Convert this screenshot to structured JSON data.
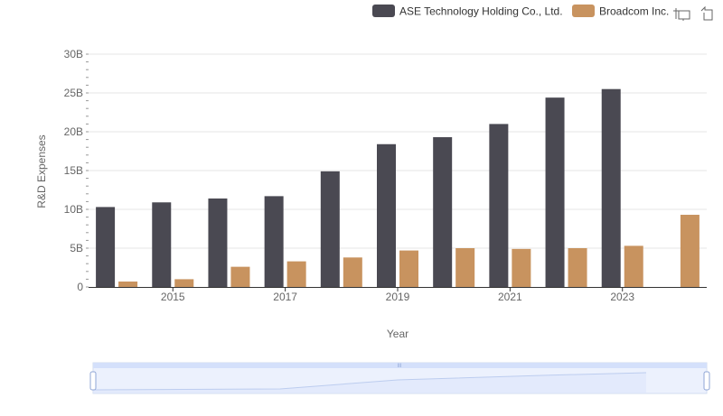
{
  "chart_data": {
    "type": "bar",
    "title": "",
    "xlabel": "Year",
    "ylabel": "R&D Expenses",
    "ylim": [
      0,
      30000000000
    ],
    "y_ticks": [
      {
        "value": 0,
        "label": "0"
      },
      {
        "value": 5000000000,
        "label": "5B"
      },
      {
        "value": 10000000000,
        "label": "10B"
      },
      {
        "value": 15000000000,
        "label": "15B"
      },
      {
        "value": 20000000000,
        "label": "20B"
      },
      {
        "value": 25000000000,
        "label": "25B"
      },
      {
        "value": 30000000000,
        "label": "30B"
      }
    ],
    "categories": [
      "2014",
      "2015",
      "2016",
      "2017",
      "2018",
      "2019",
      "2020",
      "2021",
      "2022",
      "2023",
      "2024"
    ],
    "x_tick_labels": [
      "2015",
      "2017",
      "2019",
      "2021",
      "2023"
    ],
    "grid": true,
    "legend_position": "top-right",
    "series": [
      {
        "name": "ASE Technology Holding Co., Ltd.",
        "color": "#4a4952",
        "values": [
          10300000000,
          10900000000,
          11400000000,
          11700000000,
          14900000000,
          18400000000,
          19300000000,
          21000000000,
          24400000000,
          25500000000,
          null
        ]
      },
      {
        "name": "Broadcom Inc.",
        "color": "#c8935f",
        "values": [
          700000000,
          1000000000,
          2600000000,
          3300000000,
          3800000000,
          4700000000,
          5000000000,
          4900000000,
          5000000000,
          5300000000,
          9300000000
        ]
      }
    ]
  },
  "toolbar": {
    "icons": [
      "zoom-icon",
      "restore-icon"
    ]
  },
  "data_zoom": {
    "start_percent": 0,
    "end_percent": 100,
    "handle_label": "III"
  }
}
